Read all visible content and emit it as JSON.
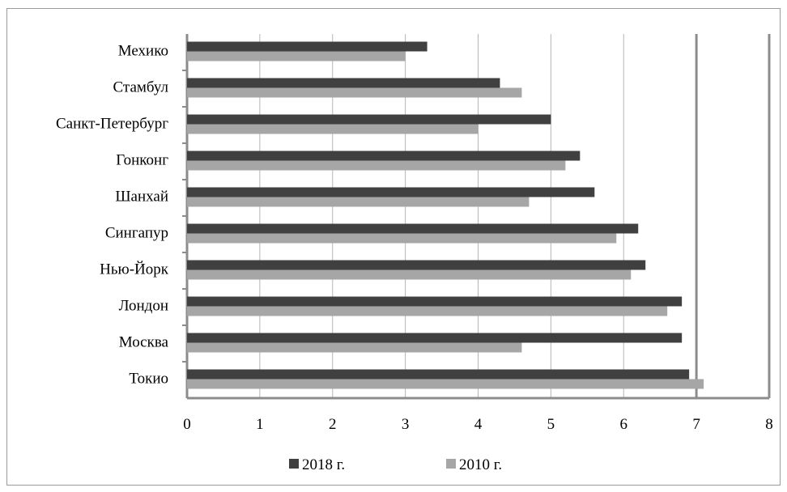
{
  "chart_data": {
    "type": "bar",
    "orientation": "horizontal",
    "categories": [
      "Мехико",
      "Стамбул",
      "Санкт-Петербург",
      "Гонконг",
      "Шанхай",
      "Сингапур",
      "Нью-Йорк",
      "Лондон",
      "Москва",
      "Токио"
    ],
    "series": [
      {
        "name": "2018 г.",
        "color": "#404040",
        "values": [
          3.3,
          4.3,
          5.0,
          5.4,
          5.6,
          6.2,
          6.3,
          6.8,
          6.8,
          6.9
        ]
      },
      {
        "name": "2010 г.",
        "color": "#a6a6a6",
        "values": [
          3.0,
          4.6,
          4.0,
          5.2,
          4.7,
          5.9,
          6.1,
          6.6,
          4.6,
          7.1
        ]
      }
    ],
    "x_ticks": [
      "0",
      "1",
      "2",
      "3",
      "4",
      "5",
      "6",
      "7",
      "8"
    ],
    "xlim": [
      0,
      8
    ],
    "grid": true,
    "legend_position": "bottom"
  }
}
